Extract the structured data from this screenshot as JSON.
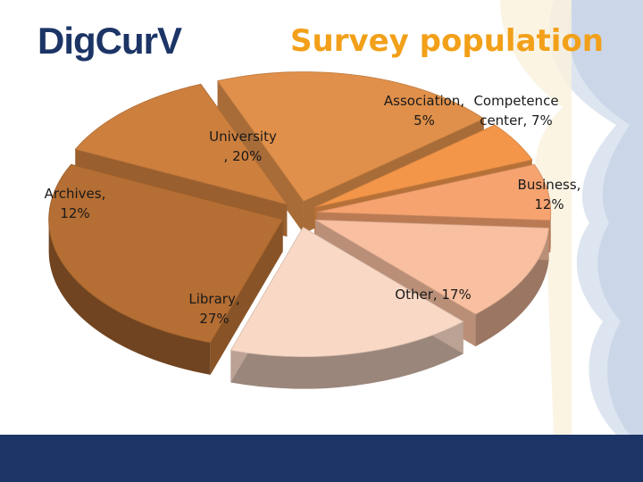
{
  "header": {
    "logo_text": "DigCurV",
    "title": "Survey population"
  },
  "colors": {
    "brand": "#1c3566",
    "title": "#f2a019"
  },
  "chart_data": {
    "type": "pie",
    "style": "3d-exploded",
    "slices": [
      {
        "label": "University, 20%",
        "lines": [
          "University",
          ", 20%"
        ],
        "value": 20,
        "color": "#e0904a"
      },
      {
        "label": "Association, 5%",
        "lines": [
          "Association,",
          "5%"
        ],
        "value": 5,
        "color": "#f3964a"
      },
      {
        "label": "Competence center, 7%",
        "lines": [
          "Competence",
          "center, 7%"
        ],
        "value": 7,
        "color": "#f6a370"
      },
      {
        "label": "Business, 12%",
        "lines": [
          "Business,",
          "12%"
        ],
        "value": 12,
        "color": "#f8bfa0"
      },
      {
        "label": "Other, 17%",
        "lines": [
          "Other, 17%"
        ],
        "value": 17,
        "color": "#f9d8c6"
      },
      {
        "label": "Library, 27%",
        "lines": [
          "Library,",
          "27%"
        ],
        "value": 27,
        "color": "#b56e33"
      },
      {
        "label": "Archives, 12%",
        "lines": [
          "Archives,",
          "12%"
        ],
        "value": 12,
        "color": "#cd7f3e"
      }
    ]
  }
}
